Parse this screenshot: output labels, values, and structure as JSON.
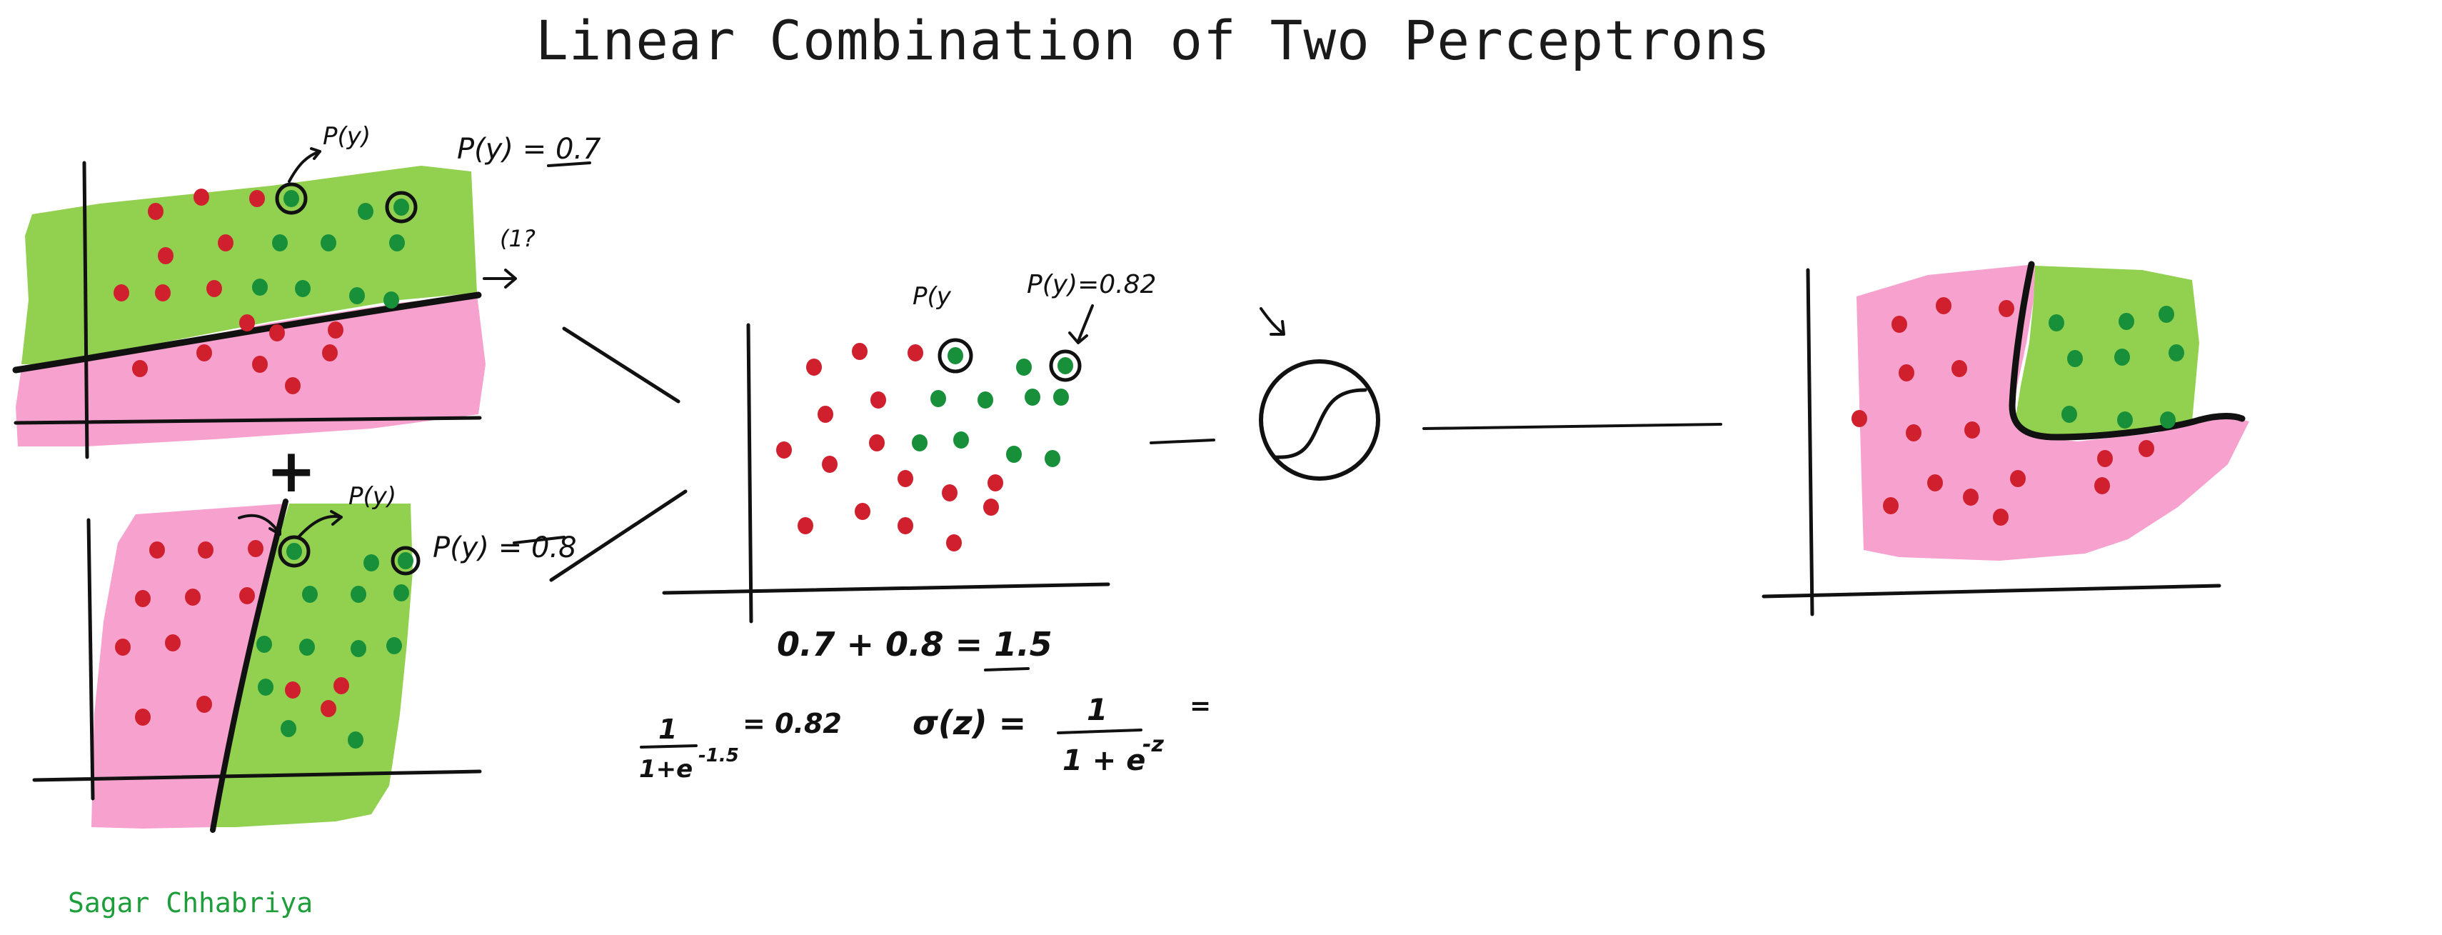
{
  "title": "Linear Combination of Two Perceptrons",
  "author": "Sagar Chhabriya",
  "panel_top": {
    "label_py": "P(y)",
    "label_prob": "P(y) = 0.7",
    "label_edge": "(1?"
  },
  "plus_sign": "+",
  "panel_bottom": {
    "label_py": "P(y)",
    "label_prob": "P(y) = 0.8"
  },
  "panel_middle": {
    "label_py": "P(y",
    "label_prob": "P(y)=0.82"
  },
  "equations": {
    "sum": "0.7 + 0.8 = 1.5",
    "sigmoid_eval_num": "1",
    "sigmoid_eval_den": "1+e",
    "sigmoid_eval_exp": "-1.5",
    "sigmoid_eval_result": "= 0.82",
    "sigma_lhs": "σ(z) =",
    "sigma_num": "1",
    "sigma_den": "1 + e",
    "sigma_exp": "-z",
    "sigma_tail": "="
  },
  "colors": {
    "green_region": "#92d050",
    "pink_region": "#f7a1cf",
    "red_point": "#d0202e",
    "green_point": "#18903a",
    "ink": "#111111",
    "author": "#1e9e3a"
  }
}
